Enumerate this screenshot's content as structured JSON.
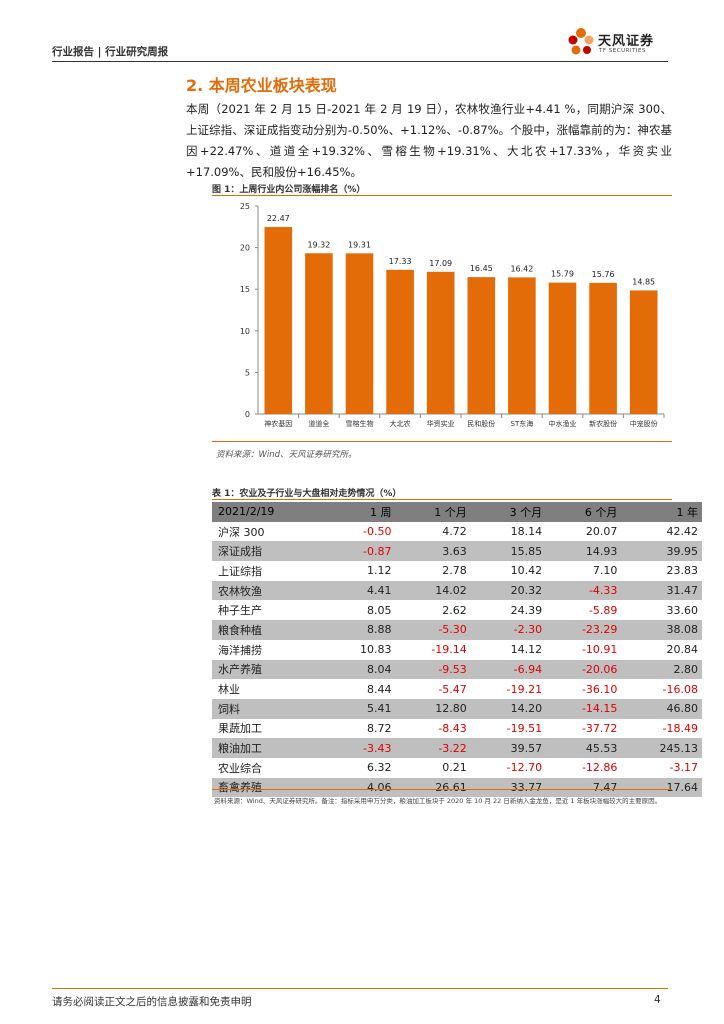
{
  "header": {
    "title": "行业报告 | 行业研究周报"
  },
  "logo": {
    "name_cn": "天风证券",
    "name_en": "TF SECURITIES",
    "colors": [
      "#e36c09",
      "#c00000",
      "#f4a460"
    ]
  },
  "section": {
    "title": "2. 本周农业板块表现",
    "paragraph": "本周（2021 年 2 月 15 日-2021 年 2 月 19 日），农林牧渔行业+4.41 %，同期沪深 300、上证综指、深证成指变动分别为-0.50%、+1.12%、-0.87%。个股中，涨幅靠前的为：神农基因+22.47%、道道全+19.32%、雪榕生物+19.31%、大北农+17.33%，华资实业+17.09%、民和股份+16.45%。"
  },
  "figure": {
    "title": "图 1：上周行业内公司涨幅排名（%）",
    "source": "资料来源：Wind、天风证券研究所。"
  },
  "chart_data": {
    "type": "bar",
    "title": "图 1：上周行业内公司涨幅排名（%）",
    "categories": [
      "神农基因",
      "道道全",
      "雪榕生物",
      "大北农",
      "华资实业",
      "民和股份",
      "ST东海",
      "中水渔业",
      "新农股份",
      "中宠股份"
    ],
    "values": [
      22.47,
      19.32,
      19.31,
      17.33,
      17.09,
      16.45,
      16.42,
      15.79,
      15.76,
      14.85
    ],
    "value_labels": [
      "22.47",
      "19.32",
      "19.31",
      "17.33",
      "17.09",
      "16.45",
      "16.42",
      "15.79",
      "15.76",
      "14.85"
    ],
    "y_ticks": [
      "0",
      "5",
      "10",
      "15",
      "20",
      "25"
    ],
    "ylim": [
      0,
      25
    ],
    "bar_color": "#e36c09",
    "grid": false
  },
  "table": {
    "title": "表 1：农业及子行业与大盘相对走势情况（%）",
    "headers": [
      "2021/2/19",
      "1 周",
      "1 个月",
      "3 个月",
      "6 个月",
      "1 年"
    ],
    "rows": [
      [
        "沪深 300",
        "-0.50",
        "4.72",
        "18.14",
        "20.07",
        "42.42"
      ],
      [
        "深证成指",
        "-0.87",
        "3.63",
        "15.85",
        "14.93",
        "39.95"
      ],
      [
        "上证综指",
        "1.12",
        "2.78",
        "10.42",
        "7.10",
        "23.83"
      ],
      [
        "农林牧渔",
        "4.41",
        "14.02",
        "20.32",
        "-4.33",
        "31.47"
      ],
      [
        "种子生产",
        "8.05",
        "2.62",
        "24.39",
        "-5.89",
        "33.60"
      ],
      [
        "粮食种植",
        "8.88",
        "-5.30",
        "-2.30",
        "-23.29",
        "38.08"
      ],
      [
        "海洋捕捞",
        "10.83",
        "-19.14",
        "14.12",
        "-10.91",
        "20.84"
      ],
      [
        "水产养殖",
        "8.04",
        "-9.53",
        "-6.94",
        "-20.06",
        "2.80"
      ],
      [
        "林业",
        "8.44",
        "-5.47",
        "-19.21",
        "-36.10",
        "-16.08"
      ],
      [
        "饲料",
        "5.41",
        "12.80",
        "14.20",
        "-14.15",
        "46.80"
      ],
      [
        "果蔬加工",
        "8.72",
        "-8.43",
        "-19.51",
        "-37.72",
        "-18.49"
      ],
      [
        "粮油加工",
        "-3.43",
        "-3.22",
        "39.57",
        "45.53",
        "245.13"
      ],
      [
        "农业综合",
        "6.32",
        "0.21",
        "-12.70",
        "-12.86",
        "-3.17"
      ],
      [
        "畜禽养殖",
        "4.06",
        "26.61",
        "33.77",
        "7.47",
        "17.64"
      ]
    ],
    "note": "资料来源：Wind、天风证券研究所。备注：指标采用申万分类，粮油加工板块于 2020 年 10 月 22 日新纳入金龙鱼，是近 1 年板块涨幅较大的主要原因。"
  },
  "footer": {
    "text": "请务必阅读正文之后的信息披露和免责申明",
    "page": "4"
  }
}
